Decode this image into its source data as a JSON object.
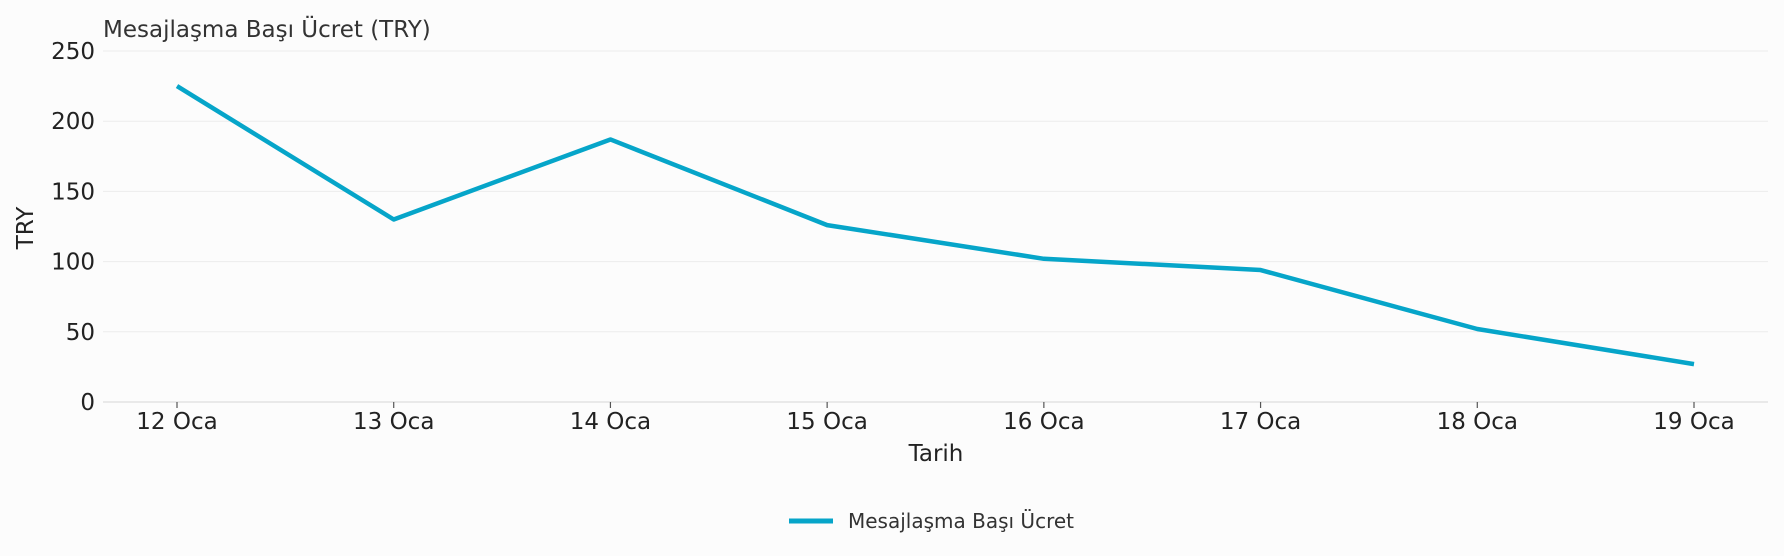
{
  "chart_data": {
    "type": "line",
    "title": "Mesajlaşma Başı Ücret (TRY)",
    "xlabel": "Tarih",
    "ylabel": "TRY",
    "categories": [
      "12 Oca",
      "13 Oca",
      "14 Oca",
      "15 Oca",
      "16 Oca",
      "17 Oca",
      "18 Oca",
      "19 Oca"
    ],
    "ylim": [
      0,
      250
    ],
    "yticks": [
      0,
      50,
      100,
      150,
      200,
      250
    ],
    "grid": "horizontal",
    "legend_position": "bottom-center",
    "series": [
      {
        "name": "Mesajlaşma Başı Ücret",
        "color": "#06a5c9",
        "values": [
          225,
          130,
          187,
          126,
          102,
          94,
          52,
          27
        ]
      }
    ]
  }
}
